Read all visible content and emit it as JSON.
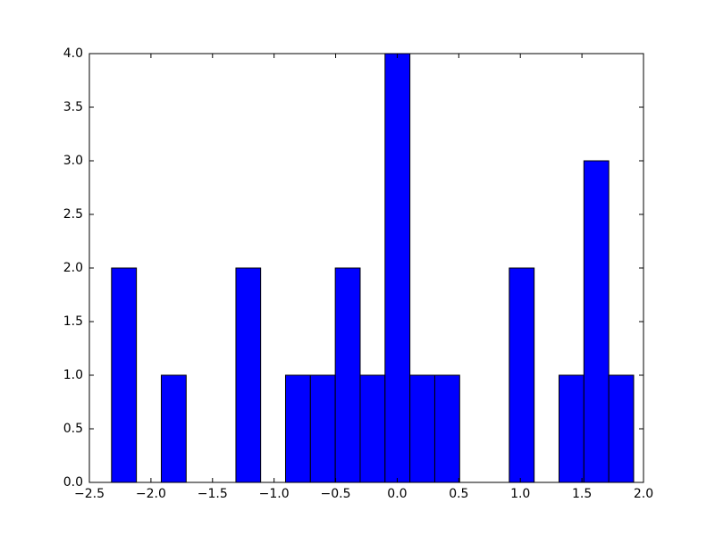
{
  "chart_data": {
    "type": "histogram",
    "bins": [
      -2.32,
      -2.118,
      -1.916,
      -1.714,
      -1.512,
      -1.31,
      -1.109,
      -0.907,
      -0.705,
      -0.503,
      -0.301,
      -0.099,
      0.103,
      0.305,
      0.507,
      0.709,
      0.91,
      1.112,
      1.314,
      1.516,
      1.718,
      1.92
    ],
    "values": [
      2,
      0,
      1,
      0,
      0,
      2,
      0,
      1,
      1,
      2,
      1,
      4,
      1,
      1,
      0,
      0,
      2,
      0,
      1,
      3,
      1
    ],
    "color": "#0000ff",
    "edgecolor": "#000000",
    "xlim": [
      -2.5,
      2.0
    ],
    "xticks": [
      {
        "value": -2.5,
        "label": "−2.5"
      },
      {
        "value": -2.0,
        "label": "−2.0"
      },
      {
        "value": -1.5,
        "label": "−1.5"
      },
      {
        "value": -1.0,
        "label": "−1.0"
      },
      {
        "value": -0.5,
        "label": "−0.5"
      },
      {
        "value": 0,
        "label": "0.0"
      },
      {
        "value": 0.5,
        "label": "0.5"
      },
      {
        "value": 1.0,
        "label": "1.0"
      },
      {
        "value": 1.5,
        "label": "1.5"
      },
      {
        "value": 2.0,
        "label": "2.0"
      }
    ],
    "ylim": [
      0,
      4
    ],
    "yticks": [
      {
        "value": 0,
        "label": "0.0"
      },
      {
        "value": 0.5,
        "label": "0.5"
      },
      {
        "value": 1,
        "label": "1.0"
      },
      {
        "value": 1.5,
        "label": "1.5"
      },
      {
        "value": 2,
        "label": "2.0"
      },
      {
        "value": 2.5,
        "label": "2.5"
      },
      {
        "value": 3,
        "label": "3.0"
      },
      {
        "value": 3.5,
        "label": "3.5"
      },
      {
        "value": 4,
        "label": "4.0"
      }
    ],
    "grid": false
  }
}
